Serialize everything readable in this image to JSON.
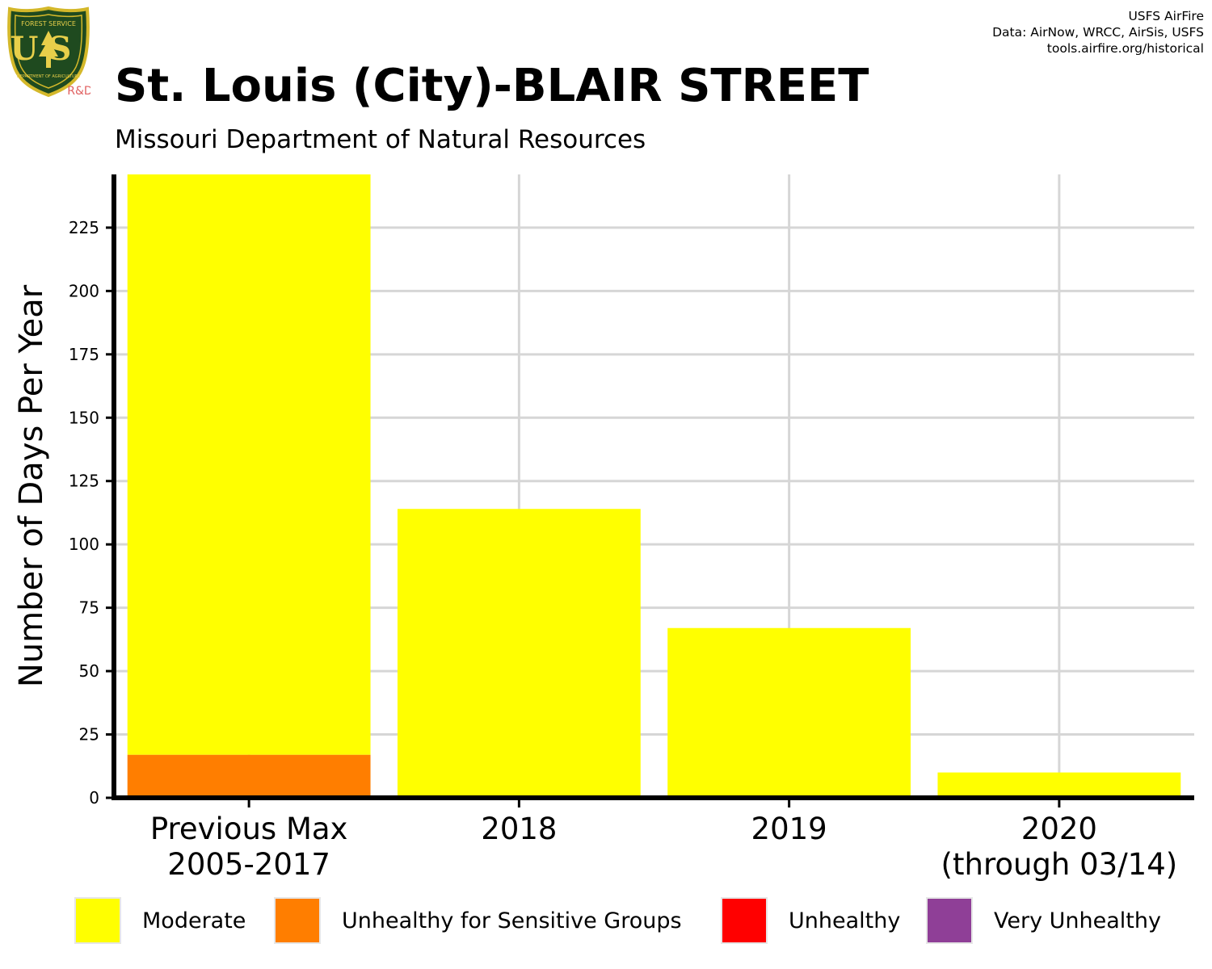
{
  "header": {
    "title": "St. Louis (City)-BLAIR STREET",
    "subtitle": "Missouri Department of Natural Resources",
    "credits": [
      "USFS AirFire",
      "Data: AirNow, WRCC, AirSis, USFS",
      "tools.airfire.org/historical"
    ]
  },
  "logo": {
    "icon": "usfs-shield-icon",
    "top_text": "FOREST SERVICE",
    "letters": "US",
    "bottom_text": "DEPARTMENT OF AGRICULTURE",
    "tag": "R&D",
    "colors": {
      "shield": "#1f4a1f",
      "border": "#d4b82a",
      "letters": "#e8cf4a",
      "tag": "#e06060"
    }
  },
  "chart_data": {
    "type": "bar",
    "stacked": true,
    "categories": [
      [
        "Previous Max",
        "2005-2017"
      ],
      [
        "2018"
      ],
      [
        "2019"
      ],
      [
        "2020",
        "(through 03/14)"
      ]
    ],
    "series": [
      {
        "name": "Moderate",
        "color": "#ffff00",
        "values": [
          229,
          114,
          67,
          10
        ]
      },
      {
        "name": "Unhealthy for Sensitive Groups",
        "color": "#ff7e00",
        "values": [
          17,
          0,
          0,
          0
        ]
      },
      {
        "name": "Unhealthy",
        "color": "#ff0000",
        "values": [
          0,
          0,
          0,
          0
        ]
      },
      {
        "name": "Very Unhealthy",
        "color": "#8f3f97",
        "values": [
          0,
          0,
          0,
          0
        ]
      }
    ],
    "ylabel": "Number of Days Per Year",
    "xlabel": "",
    "yticks": [
      0,
      25,
      50,
      75,
      100,
      125,
      150,
      175,
      200,
      225
    ],
    "ylim": [
      0,
      246
    ],
    "grid": true,
    "legend_position": "bottom"
  }
}
